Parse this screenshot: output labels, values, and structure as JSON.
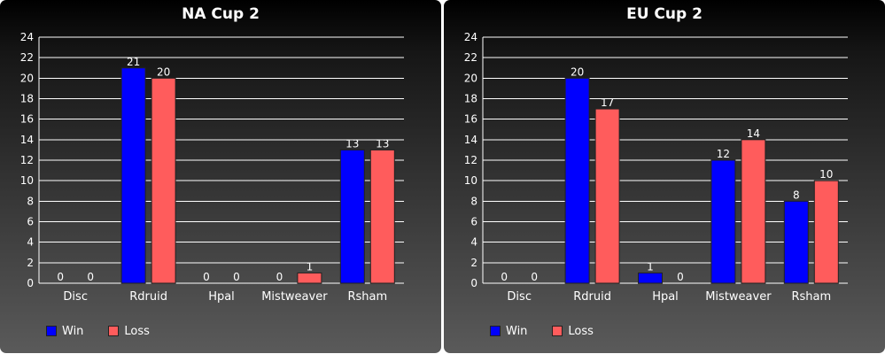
{
  "chart_data": [
    {
      "type": "bar",
      "title": "NA Cup 2",
      "categories": [
        "Disc",
        "Rdruid",
        "Hpal",
        "Mistweaver",
        "Rsham"
      ],
      "series": [
        {
          "name": "Win",
          "color": "#0000ff",
          "values": [
            0,
            21,
            0,
            0,
            13
          ]
        },
        {
          "name": "Loss",
          "color": "#ff5c5c",
          "values": [
            0,
            20,
            0,
            1,
            13
          ]
        }
      ],
      "ylim": [
        0,
        24
      ],
      "yticks": [
        0,
        2,
        4,
        6,
        8,
        10,
        12,
        14,
        16,
        18,
        20,
        22,
        24
      ],
      "grid": true,
      "legend_position": "bottom-left"
    },
    {
      "type": "bar",
      "title": "EU Cup 2",
      "categories": [
        "Disc",
        "Rdruid",
        "Hpal",
        "Mistweaver",
        "Rsham"
      ],
      "series": [
        {
          "name": "Win",
          "color": "#0000ff",
          "values": [
            0,
            20,
            1,
            12,
            8
          ]
        },
        {
          "name": "Loss",
          "color": "#ff5c5c",
          "values": [
            0,
            17,
            0,
            14,
            10
          ]
        }
      ],
      "ylim": [
        0,
        24
      ],
      "yticks": [
        0,
        2,
        4,
        6,
        8,
        10,
        12,
        14,
        16,
        18,
        20,
        22,
        24
      ],
      "grid": true,
      "legend_position": "bottom-left"
    }
  ]
}
